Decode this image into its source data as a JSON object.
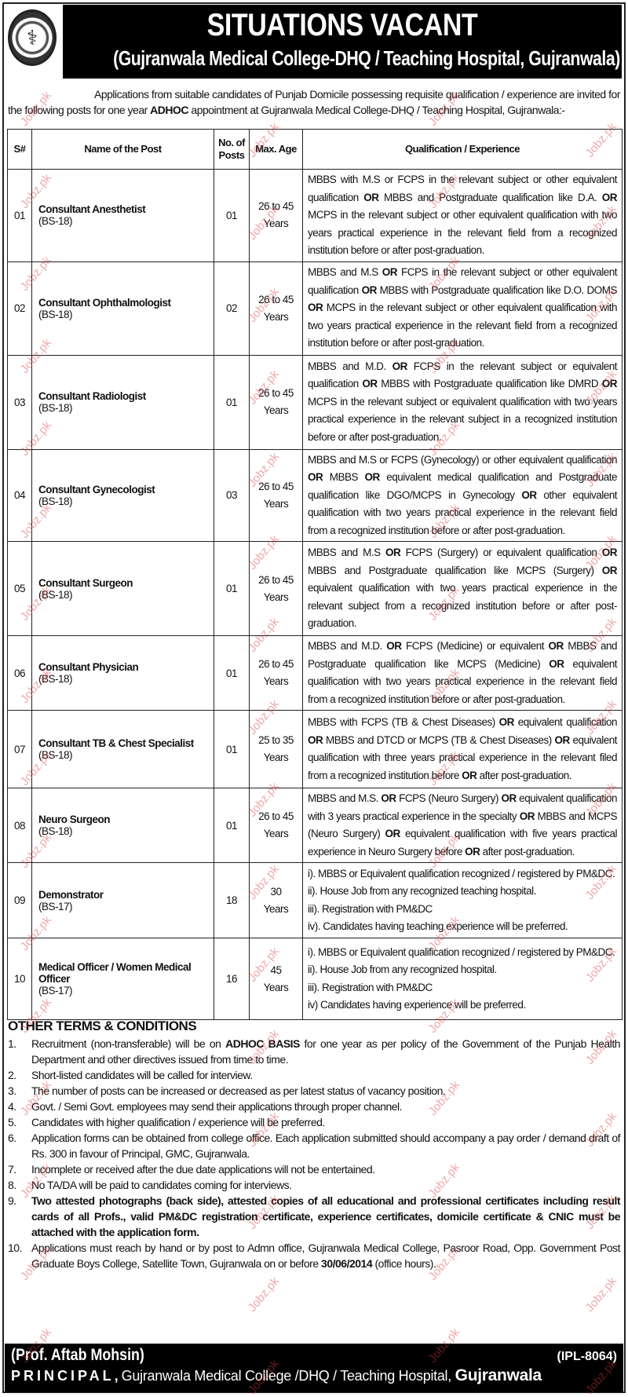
{
  "header": {
    "title": "SITUATIONS VACANT",
    "subtitle": "(Gujranwala Medical College-DHQ / Teaching Hospital, Gujranwala)",
    "logo_text": "COMMITTED TO SERVE GMC"
  },
  "intro": "Applications from suitable candidates of Punjab Domicile possessing requisite qualification / experience are invited for the following posts for one year ADHOC appointment at Gujranwala Medical College-DHQ / Teaching Hospital, Gujranwala:-",
  "table": {
    "headers": [
      "S#",
      "Name of the Post",
      "No. of Posts",
      "Max. Age",
      "Qualification / Experience"
    ],
    "rows": [
      {
        "sn": "01",
        "name": "Consultant Anesthetist",
        "grade": "(BS-18)",
        "posts": "01",
        "age": "26 to 45 Years",
        "qual": "MBBS with M.S or FCPS in the relevant subject or other equivalent qualification OR MBBS and Postgraduate qualification like D.A. OR MCPS in the relevant subject or other equivalent qualification with two years practical experience in the relevant field from a recognized institution before or after post-graduation."
      },
      {
        "sn": "02",
        "name": "Consultant Ophthalmologist",
        "grade": "(BS-18)",
        "posts": "02",
        "age": "26 to 45 Years",
        "qual": "MBBS and M.S OR FCPS in the relevant subject or other equivalent qualification OR MBBS with Postgraduate qualification like D.O. DOMS OR MCPS in the relevant subject or other equivalent qualification with two years practical experience in the relevant field from a recognized institution before or after post-graduation."
      },
      {
        "sn": "03",
        "name": "Consultant Radiologist",
        "grade": "(BS-18)",
        "posts": "01",
        "age": "26 to 45 Years",
        "qual": "MBBS and M.D. OR FCPS in the relevant subject or equivalent qualification OR MBBS with Postgraduate qualification like DMRD OR MCPS in the relevant subject or equivalent qualification with two years practical experience in the relevant subject in a recognized institution before or after post-graduation."
      },
      {
        "sn": "04",
        "name": "Consultant Gynecologist",
        "grade": "(BS-18)",
        "posts": "03",
        "age": "26 to 45 Years",
        "qual": "MBBS and M.S or FCPS (Gynecology) or other equivalent qualification OR MBBS OR equivalent medical qualification and Postgraduate qualification like DGO/MCPS in Gynecology OR other equivalent qualification with two years practical experience in the relevant field from a recognized institution before or after post-graduation."
      },
      {
        "sn": "05",
        "name": "Consultant Surgeon",
        "grade": "(BS-18)",
        "posts": "01",
        "age": "26 to 45 Years",
        "qual": "MBBS and M.S OR FCPS (Surgery) or equivalent qualification OR MBBS and Postgraduate qualification like MCPS (Surgery) OR equivalent qualification with two years practical experience in the relevant subject from a recognized institution before or after post-graduation."
      },
      {
        "sn": "06",
        "name": "Consultant Physician",
        "grade": "(BS-18)",
        "posts": "01",
        "age": "26 to 45 Years",
        "qual": "MBBS and M.D. OR FCPS (Medicine) or equivalent OR MBBS and Postgraduate qualification like MCPS (Medicine) OR equivalent qualification with two years practical experience in the relevant field from a recognized institution before or after post-graduation."
      },
      {
        "sn": "07",
        "name": "Consultant TB & Chest Specialist",
        "grade": "(BS-18)",
        "posts": "01",
        "age": "25 to 35 Years",
        "qual": "MBBS with FCPS (TB & Chest Diseases) OR equivalent qualification OR MBBS and DTCD or MCPS (TB & Chest Diseases) OR equivalent qualification with three years practical experience in the relevant filed from a recognized institution before OR after post-graduation."
      },
      {
        "sn": "08",
        "name": "Neuro Surgeon",
        "grade": "(BS-18)",
        "posts": "01",
        "age": "26 to 45 Years",
        "qual": "MBBS and M.S. OR FCPS (Neuro Surgery) OR equivalent qualification with 3 years practical experience in the specialty OR MBBS and MCPS (Neuro Surgery) OR equivalent qualification with five years practical experience in Neuro Surgery before OR after post-graduation."
      },
      {
        "sn": "09",
        "name": "Demonstrator",
        "grade": "(BS-17)",
        "posts": "18",
        "age": "30 Years",
        "qual_list": [
          "i). MBBS or Equivalent qualification recognized / registered by PM&DC.",
          "ii). House Job from any recognized teaching hospital.",
          "iii). Registration with PM&DC",
          "iv). Candidates having teaching experience will be preferred."
        ]
      },
      {
        "sn": "10",
        "name": "Medical Officer / Women Medical Officer",
        "grade": "(BS-17)",
        "posts": "16",
        "age": "45 Years",
        "qual_list": [
          "i). MBBS or Equivalent qualification recognized / registered by PM&DC.",
          "ii). House Job from any recognized hospital.",
          "iii). Registration with PM&DC",
          "iv) Candidates having experience will be preferred."
        ]
      }
    ]
  },
  "terms": {
    "title": "OTHER TERMS & CONDITIONS",
    "items": [
      {
        "n": "1.",
        "text": "Recruitment (non-transferable) will be on ADHOC BASIS for one year as per policy of the Government of the Punjab Health Department and other directives issued from time to time.",
        "bold": "ADHOC BASIS"
      },
      {
        "n": "2.",
        "text": "Short-listed candidates will be called for interview."
      },
      {
        "n": "3.",
        "text": "The number of posts can be increased or decreased as per latest status of vacancy position."
      },
      {
        "n": "4.",
        "text": "Govt. / Semi Govt. employees may send their applications through proper channel."
      },
      {
        "n": "5.",
        "text": "Candidates with higher qualification / experience will be preferred."
      },
      {
        "n": "6.",
        "text": "Application forms can be obtained from college office. Each application submitted should accompany a pay order / demand draft of Rs. 300 in favour of Principal, GMC, Gujranwala."
      },
      {
        "n": "7.",
        "text": "Incomplete or received after the due date applications will not be entertained."
      },
      {
        "n": "8.",
        "text": "No TA/DA will be paid to candidates coming for interviews."
      },
      {
        "n": "9.",
        "text": "Two attested photographs (back side), attested copies of all educational and professional certificates including result cards of all Profs., valid PM&DC registration certificate, experience certificates, domicile certificate & CNIC must be attached with the application form.",
        "all_bold": true
      },
      {
        "n": "10.",
        "text": "Applications must reach by hand or by post to Admn office, Gujranwala Medical College, Pasroor Road, Opp. Government Post Graduate Boys College, Satellite Town, Gujranwala on or before 30/06/2014 (office hours).",
        "bold": "30/06/2014"
      }
    ]
  },
  "footer": {
    "signatory": "(Prof. Aftab Mohsin)",
    "ref": "(IPL-8064)",
    "designation": "PRINCIPAL,",
    "institution": "Gujranwala Medical College /DHQ / Teaching Hospital,",
    "city": "Gujranwala"
  },
  "watermark": "Jobz.pk",
  "colors": {
    "banner": "#000000",
    "watermark": "#dc3c3c"
  }
}
